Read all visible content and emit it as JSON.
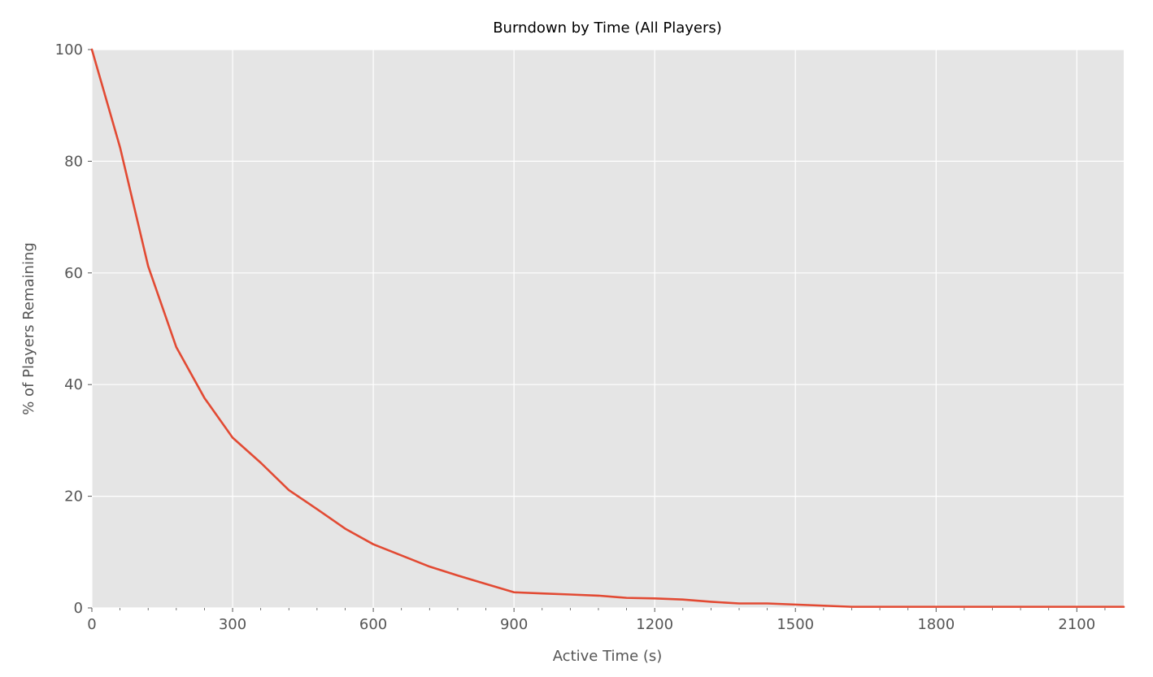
{
  "chart_data": {
    "type": "line",
    "title": "Burndown by Time (All Players)",
    "xlabel": "Active Time (s)",
    "ylabel": "% of Players Remaining",
    "xlim": [
      0,
      2200
    ],
    "ylim": [
      0,
      100
    ],
    "x_ticks": [
      0,
      300,
      600,
      900,
      1200,
      1500,
      1800,
      2100
    ],
    "x_minor_step": 60,
    "y_ticks": [
      0,
      20,
      40,
      60,
      80,
      100
    ],
    "grid": true,
    "legend": "none",
    "series": [
      {
        "color": "#E24A33",
        "x": [
          0,
          60,
          120,
          180,
          240,
          300,
          360,
          420,
          480,
          540,
          600,
          660,
          720,
          780,
          840,
          900,
          960,
          1020,
          1080,
          1140,
          1200,
          1260,
          1320,
          1380,
          1440,
          1500,
          1560,
          1620,
          1680,
          1740,
          1800,
          1860,
          1920,
          1980,
          2040,
          2100,
          2160,
          2200
        ],
        "y": [
          100,
          82.5,
          61.2,
          46.7,
          37.6,
          30.5,
          26.0,
          21.1,
          17.7,
          14.2,
          11.4,
          9.4,
          7.4,
          5.8,
          4.3,
          2.8,
          2.6,
          2.4,
          2.2,
          1.8,
          1.7,
          1.5,
          1.1,
          0.8,
          0.8,
          0.6,
          0.4,
          0.2,
          0.2,
          0.2,
          0.2,
          0.2,
          0.2,
          0.2,
          0.2,
          0.2,
          0.2,
          0.2
        ]
      }
    ]
  },
  "colors": {
    "plot_background": "#E5E5E5",
    "grid": "#FFFFFF",
    "text": "#555555",
    "title": "#000000"
  }
}
